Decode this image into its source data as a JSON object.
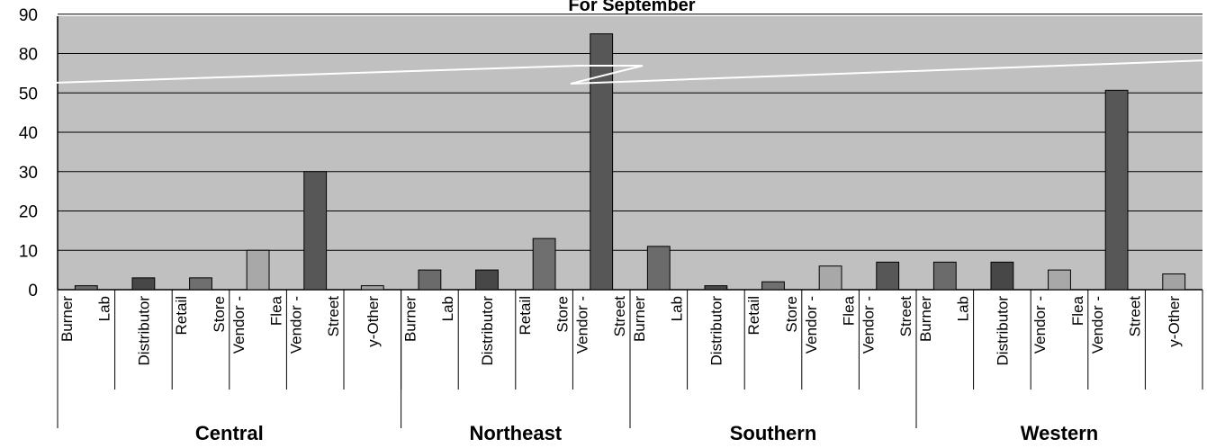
{
  "chart_data": {
    "type": "bar",
    "title": "For September",
    "y_tick_labels": [
      "0",
      "10",
      "20",
      "30",
      "40",
      "50",
      "80",
      "90"
    ],
    "scale_break": "between 50 and 80",
    "grid": true,
    "legend": "none",
    "colors": {
      "plot_background": "#c0c0c0",
      "gridline": "#000000",
      "break_line": "#ffffff",
      "burner_lab": "#6b6b6b",
      "distributor": "#474747",
      "retail_store": "#6f6f6f",
      "vendor_flea": "#a8a8a8",
      "vendor_street": "#575757",
      "other": "#a3a3a3"
    },
    "groups": [
      {
        "name": "Central",
        "categories": [
          {
            "lines": [
              "Burner",
              "Lab"
            ],
            "value": 1,
            "color_key": "burner_lab"
          },
          {
            "lines": [
              "Distributor"
            ],
            "value": 3,
            "color_key": "distributor"
          },
          {
            "lines": [
              "Retail",
              "Store"
            ],
            "value": 3,
            "color_key": "retail_store"
          },
          {
            "lines": [
              "Vendor -",
              "Flea"
            ],
            "value": 10,
            "color_key": "vendor_flea"
          },
          {
            "lines": [
              "Vendor -",
              "Street"
            ],
            "value": 30,
            "color_key": "vendor_street"
          },
          {
            "lines": [
              "y-Other"
            ],
            "value": 1,
            "color_key": "other"
          }
        ]
      },
      {
        "name": "Northeast",
        "categories": [
          {
            "lines": [
              "Burner",
              "Lab"
            ],
            "value": 5,
            "color_key": "burner_lab"
          },
          {
            "lines": [
              "Distributor"
            ],
            "value": 5,
            "color_key": "distributor"
          },
          {
            "lines": [
              "Retail",
              "Store"
            ],
            "value": 13,
            "color_key": "retail_store"
          },
          {
            "lines": [
              "Vendor -",
              "Street"
            ],
            "value": 85,
            "color_key": "vendor_street"
          }
        ]
      },
      {
        "name": "Southern",
        "categories": [
          {
            "lines": [
              "Burner",
              "Lab"
            ],
            "value": 11,
            "color_key": "burner_lab"
          },
          {
            "lines": [
              "Distributor"
            ],
            "value": 1,
            "color_key": "distributor"
          },
          {
            "lines": [
              "Retail",
              "Store"
            ],
            "value": 2,
            "color_key": "retail_store"
          },
          {
            "lines": [
              "Vendor -",
              "Flea"
            ],
            "value": 6,
            "color_key": "vendor_flea"
          },
          {
            "lines": [
              "Vendor -",
              "Street"
            ],
            "value": 7,
            "color_key": "vendor_street"
          }
        ]
      },
      {
        "name": "Western",
        "categories": [
          {
            "lines": [
              "Burner",
              "Lab"
            ],
            "value": 7,
            "color_key": "burner_lab"
          },
          {
            "lines": [
              "Distributor"
            ],
            "value": 7,
            "color_key": "distributor"
          },
          {
            "lines": [
              "Vendor -",
              "Flea"
            ],
            "value": 5,
            "color_key": "vendor_flea"
          },
          {
            "lines": [
              "Vendor -",
              "Street"
            ],
            "value": 52,
            "color_key": "vendor_street"
          },
          {
            "lines": [
              "y-Other"
            ],
            "value": 4,
            "color_key": "other"
          }
        ]
      }
    ]
  }
}
